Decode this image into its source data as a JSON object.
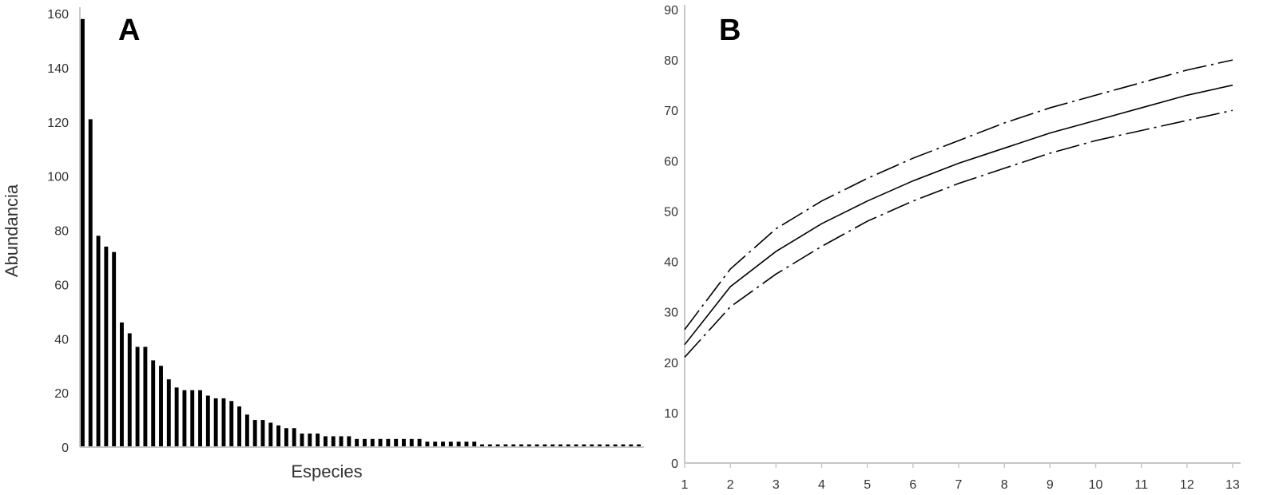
{
  "chart_data": [
    {
      "panel": "A",
      "type": "bar",
      "title": "",
      "xlabel": "Especies",
      "ylabel": "Abundancia",
      "ylim": [
        0,
        160
      ],
      "yticks": [
        0,
        20,
        40,
        60,
        80,
        100,
        120,
        140,
        160
      ],
      "values": [
        158,
        121,
        78,
        74,
        72,
        46,
        42,
        37,
        37,
        32,
        30,
        25,
        22,
        21,
        21,
        21,
        19,
        18,
        18,
        17,
        15,
        12,
        10,
        10,
        9,
        8,
        7,
        7,
        5,
        5,
        5,
        4,
        4,
        4,
        4,
        3,
        3,
        3,
        3,
        3,
        3,
        3,
        3,
        3,
        2,
        2,
        2,
        2,
        2,
        2,
        2,
        1,
        1,
        1,
        1,
        1,
        1,
        1,
        1,
        1,
        1,
        1,
        1,
        1,
        1,
        1,
        1,
        1,
        1,
        1,
        1,
        1
      ],
      "bar_color": "#000000",
      "grid": false
    },
    {
      "panel": "B",
      "type": "line",
      "title": "",
      "xlabel": "",
      "ylabel": "",
      "xlim": [
        1,
        13
      ],
      "ylim": [
        0,
        90
      ],
      "xticks": [
        1,
        2,
        3,
        4,
        5,
        6,
        7,
        8,
        9,
        10,
        11,
        12,
        13
      ],
      "yticks": [
        0,
        10,
        20,
        30,
        40,
        50,
        60,
        70,
        80,
        90
      ],
      "x": [
        1,
        2,
        3,
        4,
        5,
        6,
        7,
        8,
        9,
        10,
        11,
        12,
        13
      ],
      "series": [
        {
          "style": "solid",
          "values": [
            23.5,
            35,
            42,
            47.5,
            52,
            56,
            59.5,
            62.5,
            65.5,
            68,
            70.5,
            73,
            75
          ]
        },
        {
          "style": "dashdot",
          "values": [
            26.5,
            38.5,
            46.5,
            52,
            56.5,
            60.5,
            64,
            67.5,
            70.5,
            73,
            75.5,
            78,
            80
          ]
        },
        {
          "style": "dashdot",
          "values": [
            21,
            31,
            37.5,
            43,
            48,
            52,
            55.5,
            58.5,
            61.5,
            64,
            66,
            68,
            70
          ]
        }
      ],
      "line_color": "#000000",
      "grid": false
    }
  ]
}
